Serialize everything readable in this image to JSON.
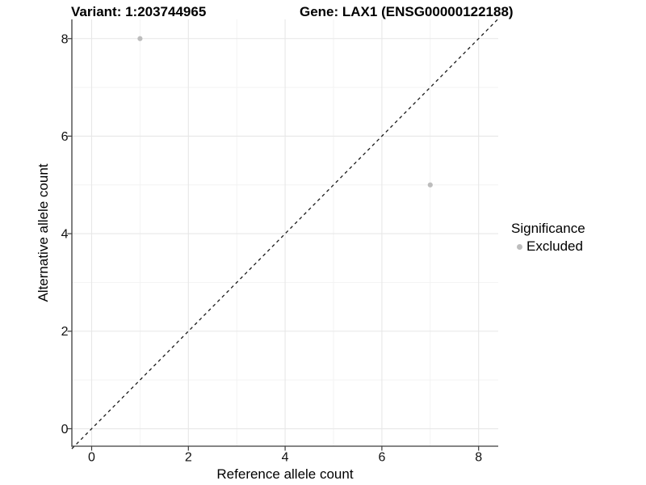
{
  "titles": {
    "variant": "Variant: 1:203744965",
    "gene": "Gene: LAX1 (ENSG00000122188)"
  },
  "chart_data": {
    "type": "scatter",
    "xlabel": "Reference allele count",
    "ylabel": "Alternative allele count",
    "xticks": [
      0,
      2,
      4,
      6,
      8
    ],
    "yticks": [
      0,
      2,
      4,
      6,
      8
    ],
    "x_minor_ticks": [
      1,
      3,
      5,
      7
    ],
    "y_minor_ticks": [
      1,
      3,
      5,
      7
    ],
    "xlim": [
      -0.41,
      8.41
    ],
    "ylim": [
      -0.36,
      8.4
    ],
    "grid": "major and minor, light gray, on white panel; black left/bottom axis lines only",
    "series": [
      {
        "name": "Excluded",
        "points": [
          {
            "x": 1,
            "y": 8
          },
          {
            "x": 7,
            "y": 5
          }
        ]
      }
    ],
    "identity_line": {
      "type": "y=x",
      "style": "dashed",
      "from": -0.41,
      "to": 8.41
    },
    "legend": {
      "position": "right",
      "title": "Significance",
      "items": [
        {
          "label": "Excluded",
          "color": "#bdbdbd"
        }
      ]
    },
    "colors": {
      "point": "#bdbdbd",
      "grid_major": "#e7e7e7",
      "grid_minor": "#f2f2f2",
      "axis_line": "#3c3c3c",
      "tick_text": "#111111",
      "dashed_line": "#1a1a1a",
      "background": "#ffffff"
    }
  }
}
